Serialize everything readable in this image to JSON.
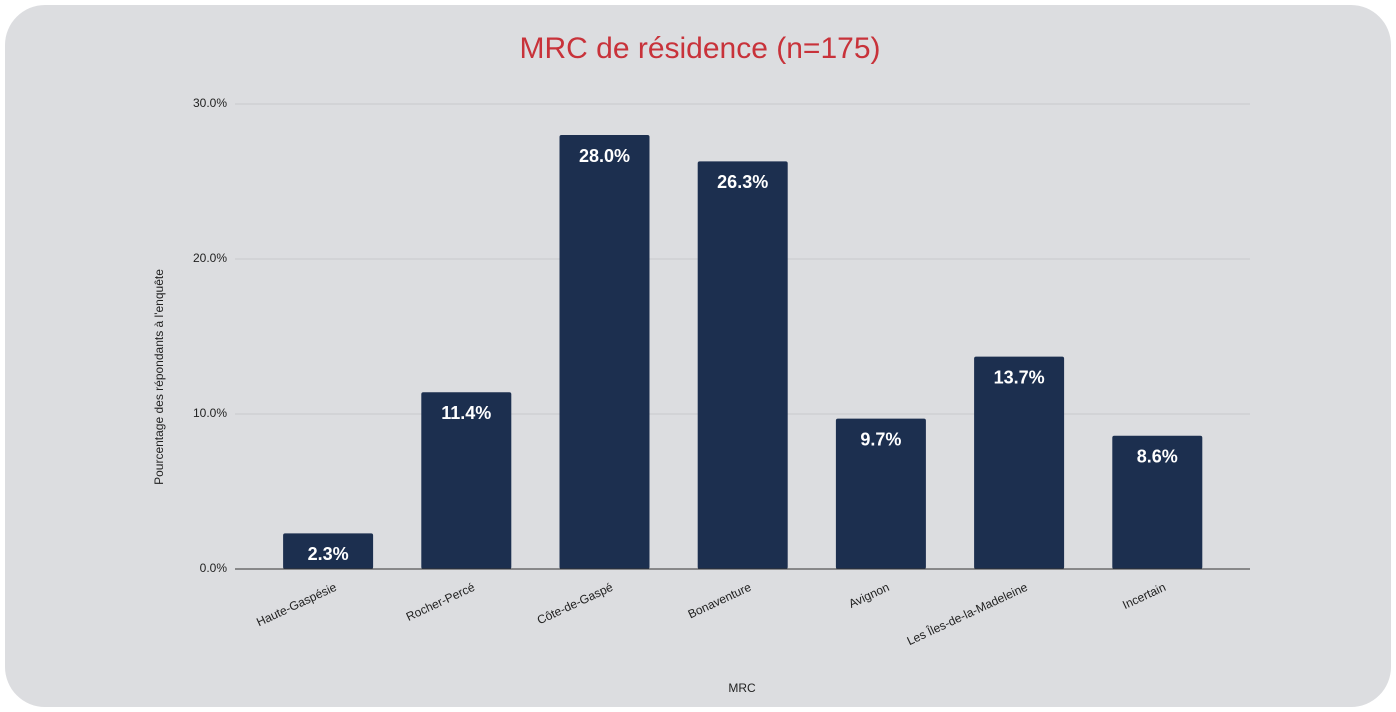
{
  "chart_data": {
    "type": "bar",
    "title": "MRC de résidence (n=175)",
    "x_label": "MRC",
    "y_label": "Pourcentage des répondants à l'enquête",
    "categories": [
      "Haute-Gaspésie",
      "Rocher-Percé",
      "Côte-de-Gaspé",
      "Bonaventure",
      "Avignon",
      "Les Îles-de-la-Madeleine",
      "Incertain"
    ],
    "values": [
      2.3,
      11.4,
      28.0,
      26.3,
      9.7,
      13.7,
      8.6
    ],
    "value_labels": [
      "2.3%",
      "11.4%",
      "28.0%",
      "26.3%",
      "9.7%",
      "13.7%",
      "8.6%"
    ],
    "color": "#1c2f4f",
    "ylim": [
      0,
      30
    ],
    "yticks": [
      {
        "value": 0,
        "label": "0.0%"
      },
      {
        "value": 10,
        "label": "10.0%"
      },
      {
        "value": 20,
        "label": "20.0%"
      },
      {
        "value": 30,
        "label": "30.0%"
      }
    ],
    "grid": true
  }
}
